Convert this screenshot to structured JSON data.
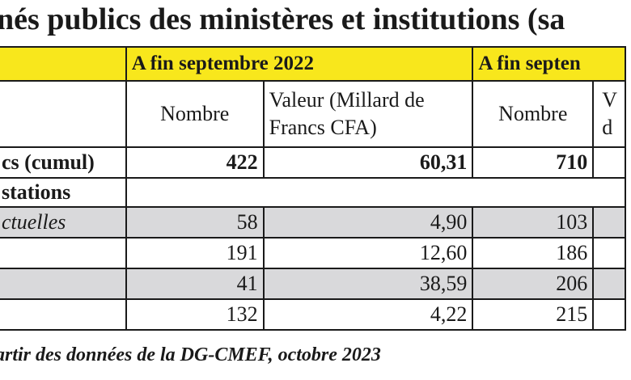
{
  "title": "nés publics des ministères et institutions (sa",
  "header": {
    "period1": "A fin septembre 2022",
    "period2": "A fin septen"
  },
  "subheader": {
    "nombre": "Nombre",
    "valeur": "Valeur (Millard de Francs CFA)",
    "valeur_truncated": "V d"
  },
  "total_row": {
    "label": "cs (cumul)",
    "nombre_2022": "422",
    "valeur_2022": "60,31",
    "nombre_2023": "710"
  },
  "section_label": "stations",
  "rows": [
    {
      "label": "ctuelles",
      "nombre_2022": "58",
      "valeur_2022": "4,90",
      "nombre_2023": "103"
    },
    {
      "label": "",
      "nombre_2022": "191",
      "valeur_2022": "12,60",
      "nombre_2023": "186"
    },
    {
      "label": "",
      "nombre_2022": "41",
      "valeur_2022": "38,59",
      "nombre_2023": "206"
    },
    {
      "label": "",
      "nombre_2022": "132",
      "valeur_2022": "4,22",
      "nombre_2023": "215"
    }
  ],
  "source": "artir des données de la DG-CMEF, octobre 2023"
}
